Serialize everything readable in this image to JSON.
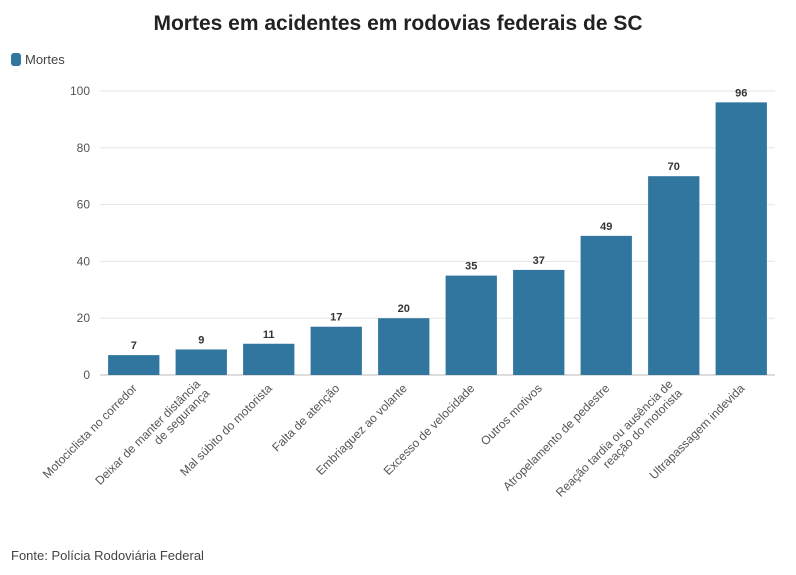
{
  "chart_data": {
    "type": "bar",
    "title": "Mortes em acidentes em rodovias federais de SC",
    "legend": {
      "position": "top-left",
      "entries": [
        "Mortes"
      ]
    },
    "categories": [
      [
        "Motociclista no corredor"
      ],
      [
        "Deixar de manter distância",
        "de segurança"
      ],
      [
        "Mal súbito do motorista"
      ],
      [
        "Falta de atenção"
      ],
      [
        "Embriaguez ao volante"
      ],
      [
        "Excesso de velocidade"
      ],
      [
        "Outros motivos"
      ],
      [
        "Atropelamento de pedestre"
      ],
      [
        "Reação tardia ou ausência de",
        "reação do motorista"
      ],
      [
        "Ultrapassagem indevida"
      ]
    ],
    "series": [
      {
        "name": "Mortes",
        "values": [
          7,
          9,
          11,
          17,
          20,
          35,
          37,
          49,
          70,
          96
        ],
        "color": "#31769f"
      }
    ],
    "ylim": [
      0,
      100
    ],
    "yticks": [
      0,
      20,
      40,
      60,
      80,
      100
    ],
    "grid": true,
    "xlabel": "",
    "ylabel": "",
    "source": "Fonte: Polícia Rodoviária Federal"
  }
}
